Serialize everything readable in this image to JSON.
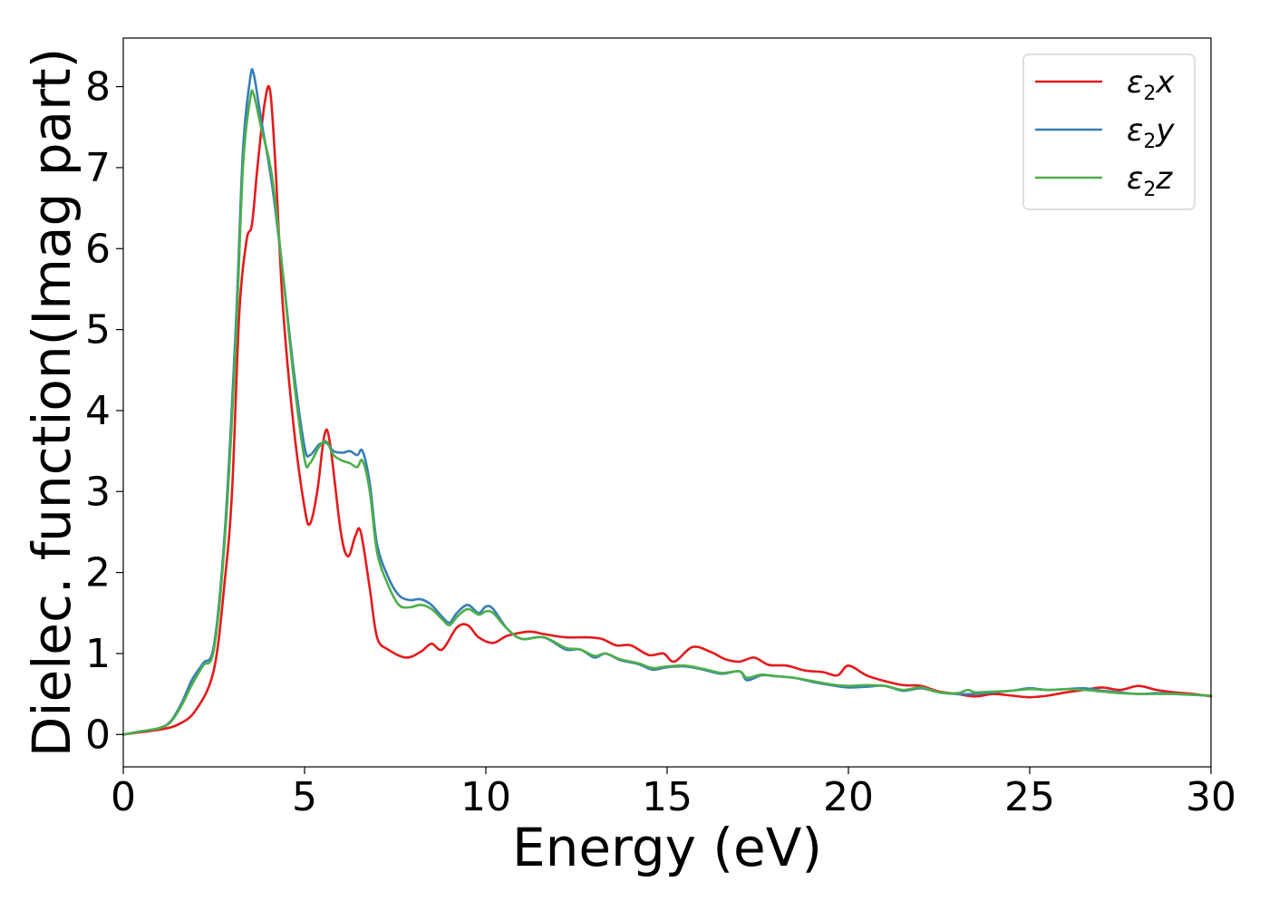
{
  "chart_data": {
    "type": "line",
    "title": "",
    "xlabel": "Energy (eV)",
    "ylabel": "Dielec. function(Imag part)",
    "xlim": [
      0,
      30
    ],
    "ylim": [
      -0.4,
      8.6
    ],
    "xticks": [
      "0",
      "5",
      "10",
      "15",
      "20",
      "25",
      "30"
    ],
    "yticks": [
      "0",
      "1",
      "2",
      "3",
      "4",
      "5",
      "6",
      "7",
      "8"
    ],
    "grid": false,
    "legend_position": "top-right",
    "series": [
      {
        "name": "ε2x",
        "legend_base": "ε",
        "legend_sub": "2",
        "legend_suffix": "x",
        "color": "#e41a1c",
        "points": [
          [
            0,
            0
          ],
          [
            0.5,
            0.03
          ],
          [
            1.0,
            0.06
          ],
          [
            1.5,
            0.12
          ],
          [
            2.0,
            0.3
          ],
          [
            2.5,
            0.8
          ],
          [
            2.8,
            1.9
          ],
          [
            3.0,
            3.0
          ],
          [
            3.2,
            5.2
          ],
          [
            3.4,
            6.1
          ],
          [
            3.55,
            6.3
          ],
          [
            3.7,
            7.0
          ],
          [
            3.9,
            7.8
          ],
          [
            4.05,
            7.95
          ],
          [
            4.2,
            7.0
          ],
          [
            4.4,
            5.3
          ],
          [
            4.7,
            3.8
          ],
          [
            5.0,
            2.8
          ],
          [
            5.15,
            2.6
          ],
          [
            5.35,
            3.0
          ],
          [
            5.55,
            3.7
          ],
          [
            5.7,
            3.6
          ],
          [
            6.0,
            2.5
          ],
          [
            6.2,
            2.2
          ],
          [
            6.4,
            2.45
          ],
          [
            6.55,
            2.5
          ],
          [
            6.8,
            1.8
          ],
          [
            7.0,
            1.2
          ],
          [
            7.3,
            1.05
          ],
          [
            7.8,
            0.95
          ],
          [
            8.2,
            1.02
          ],
          [
            8.5,
            1.12
          ],
          [
            8.8,
            1.05
          ],
          [
            9.2,
            1.32
          ],
          [
            9.5,
            1.35
          ],
          [
            9.8,
            1.2
          ],
          [
            10.2,
            1.13
          ],
          [
            10.6,
            1.22
          ],
          [
            11.2,
            1.27
          ],
          [
            11.6,
            1.24
          ],
          [
            12.2,
            1.2
          ],
          [
            12.8,
            1.2
          ],
          [
            13.2,
            1.18
          ],
          [
            13.6,
            1.1
          ],
          [
            14.0,
            1.1
          ],
          [
            14.5,
            0.98
          ],
          [
            14.9,
            1.0
          ],
          [
            15.2,
            0.9
          ],
          [
            15.7,
            1.08
          ],
          [
            16.2,
            1.02
          ],
          [
            16.6,
            0.93
          ],
          [
            17.0,
            0.9
          ],
          [
            17.4,
            0.95
          ],
          [
            17.8,
            0.86
          ],
          [
            18.3,
            0.85
          ],
          [
            18.8,
            0.79
          ],
          [
            19.3,
            0.77
          ],
          [
            19.7,
            0.73
          ],
          [
            20.0,
            0.85
          ],
          [
            20.5,
            0.73
          ],
          [
            21.0,
            0.66
          ],
          [
            21.5,
            0.61
          ],
          [
            22.0,
            0.6
          ],
          [
            22.5,
            0.53
          ],
          [
            23.0,
            0.5
          ],
          [
            23.5,
            0.47
          ],
          [
            24.0,
            0.5
          ],
          [
            24.5,
            0.48
          ],
          [
            25.0,
            0.46
          ],
          [
            25.5,
            0.48
          ],
          [
            26.0,
            0.52
          ],
          [
            26.5,
            0.55
          ],
          [
            27.0,
            0.58
          ],
          [
            27.5,
            0.55
          ],
          [
            28.0,
            0.6
          ],
          [
            28.5,
            0.55
          ],
          [
            29.0,
            0.52
          ],
          [
            29.5,
            0.5
          ],
          [
            30.0,
            0.47
          ]
        ]
      },
      {
        "name": "ε2y",
        "legend_base": "ε",
        "legend_sub": "2",
        "legend_suffix": "y",
        "color": "#377eb8",
        "points": [
          [
            0,
            0
          ],
          [
            0.5,
            0.04
          ],
          [
            1.0,
            0.08
          ],
          [
            1.3,
            0.16
          ],
          [
            1.6,
            0.38
          ],
          [
            1.9,
            0.68
          ],
          [
            2.2,
            0.88
          ],
          [
            2.5,
            1.1
          ],
          [
            2.8,
            2.5
          ],
          [
            3.1,
            5.0
          ],
          [
            3.3,
            7.2
          ],
          [
            3.5,
            8.1
          ],
          [
            3.6,
            8.15
          ],
          [
            3.8,
            7.6
          ],
          [
            4.1,
            6.8
          ],
          [
            4.4,
            5.7
          ],
          [
            4.7,
            4.5
          ],
          [
            5.0,
            3.55
          ],
          [
            5.15,
            3.45
          ],
          [
            5.4,
            3.58
          ],
          [
            5.6,
            3.6
          ],
          [
            5.8,
            3.5
          ],
          [
            6.05,
            3.48
          ],
          [
            6.25,
            3.5
          ],
          [
            6.45,
            3.45
          ],
          [
            6.6,
            3.5
          ],
          [
            6.8,
            3.1
          ],
          [
            7.0,
            2.35
          ],
          [
            7.3,
            1.95
          ],
          [
            7.6,
            1.72
          ],
          [
            7.9,
            1.66
          ],
          [
            8.2,
            1.67
          ],
          [
            8.5,
            1.6
          ],
          [
            8.8,
            1.45
          ],
          [
            9.0,
            1.38
          ],
          [
            9.2,
            1.5
          ],
          [
            9.5,
            1.6
          ],
          [
            9.8,
            1.5
          ],
          [
            10.0,
            1.58
          ],
          [
            10.2,
            1.55
          ],
          [
            10.6,
            1.3
          ],
          [
            11.0,
            1.18
          ],
          [
            11.6,
            1.2
          ],
          [
            12.2,
            1.05
          ],
          [
            12.6,
            1.05
          ],
          [
            13.0,
            0.95
          ],
          [
            13.3,
            1.0
          ],
          [
            13.7,
            0.92
          ],
          [
            14.2,
            0.87
          ],
          [
            14.6,
            0.8
          ],
          [
            15.0,
            0.83
          ],
          [
            15.5,
            0.84
          ],
          [
            16.0,
            0.8
          ],
          [
            16.5,
            0.75
          ],
          [
            17.0,
            0.78
          ],
          [
            17.2,
            0.67
          ],
          [
            17.6,
            0.73
          ],
          [
            18.0,
            0.72
          ],
          [
            18.5,
            0.7
          ],
          [
            19.0,
            0.65
          ],
          [
            19.5,
            0.61
          ],
          [
            20.0,
            0.58
          ],
          [
            20.5,
            0.59
          ],
          [
            21.0,
            0.6
          ],
          [
            21.5,
            0.54
          ],
          [
            22.0,
            0.57
          ],
          [
            22.5,
            0.52
          ],
          [
            23.0,
            0.5
          ],
          [
            23.5,
            0.5
          ],
          [
            24.0,
            0.52
          ],
          [
            24.5,
            0.54
          ],
          [
            25.0,
            0.57
          ],
          [
            25.5,
            0.55
          ],
          [
            26.0,
            0.56
          ],
          [
            26.5,
            0.57
          ],
          [
            27.0,
            0.54
          ],
          [
            27.5,
            0.52
          ],
          [
            28.0,
            0.5
          ],
          [
            28.5,
            0.51
          ],
          [
            29.0,
            0.5
          ],
          [
            29.5,
            0.49
          ],
          [
            30.0,
            0.48
          ]
        ]
      },
      {
        "name": "ε2z",
        "legend_base": "ε",
        "legend_sub": "2",
        "legend_suffix": "z",
        "color": "#4daf4a",
        "points": [
          [
            0,
            0
          ],
          [
            0.5,
            0.04
          ],
          [
            1.0,
            0.08
          ],
          [
            1.3,
            0.15
          ],
          [
            1.6,
            0.35
          ],
          [
            1.9,
            0.62
          ],
          [
            2.2,
            0.85
          ],
          [
            2.5,
            1.05
          ],
          [
            2.8,
            2.4
          ],
          [
            3.1,
            4.8
          ],
          [
            3.3,
            7.0
          ],
          [
            3.5,
            7.85
          ],
          [
            3.6,
            7.9
          ],
          [
            3.8,
            7.5
          ],
          [
            4.1,
            6.9
          ],
          [
            4.4,
            5.7
          ],
          [
            4.7,
            4.4
          ],
          [
            5.0,
            3.4
          ],
          [
            5.15,
            3.35
          ],
          [
            5.4,
            3.55
          ],
          [
            5.6,
            3.62
          ],
          [
            5.8,
            3.45
          ],
          [
            6.05,
            3.38
          ],
          [
            6.25,
            3.35
          ],
          [
            6.45,
            3.3
          ],
          [
            6.6,
            3.38
          ],
          [
            6.8,
            3.0
          ],
          [
            7.0,
            2.25
          ],
          [
            7.3,
            1.85
          ],
          [
            7.6,
            1.6
          ],
          [
            7.9,
            1.57
          ],
          [
            8.2,
            1.6
          ],
          [
            8.5,
            1.55
          ],
          [
            8.8,
            1.42
          ],
          [
            9.0,
            1.35
          ],
          [
            9.2,
            1.45
          ],
          [
            9.5,
            1.55
          ],
          [
            9.8,
            1.48
          ],
          [
            10.0,
            1.52
          ],
          [
            10.2,
            1.5
          ],
          [
            10.6,
            1.3
          ],
          [
            11.0,
            1.18
          ],
          [
            11.6,
            1.2
          ],
          [
            12.2,
            1.07
          ],
          [
            12.6,
            1.05
          ],
          [
            13.0,
            0.97
          ],
          [
            13.3,
            1.0
          ],
          [
            13.7,
            0.93
          ],
          [
            14.2,
            0.88
          ],
          [
            14.6,
            0.82
          ],
          [
            15.0,
            0.84
          ],
          [
            15.5,
            0.85
          ],
          [
            16.0,
            0.81
          ],
          [
            16.5,
            0.76
          ],
          [
            17.0,
            0.78
          ],
          [
            17.2,
            0.7
          ],
          [
            17.6,
            0.74
          ],
          [
            18.0,
            0.72
          ],
          [
            18.5,
            0.7
          ],
          [
            19.0,
            0.66
          ],
          [
            19.5,
            0.62
          ],
          [
            20.0,
            0.6
          ],
          [
            20.5,
            0.61
          ],
          [
            21.0,
            0.6
          ],
          [
            21.5,
            0.55
          ],
          [
            22.0,
            0.58
          ],
          [
            22.5,
            0.52
          ],
          [
            23.0,
            0.51
          ],
          [
            23.3,
            0.55
          ],
          [
            23.5,
            0.52
          ],
          [
            24.0,
            0.53
          ],
          [
            24.5,
            0.54
          ],
          [
            25.0,
            0.56
          ],
          [
            25.5,
            0.55
          ],
          [
            26.0,
            0.56
          ],
          [
            26.5,
            0.55
          ],
          [
            27.0,
            0.53
          ],
          [
            27.5,
            0.51
          ],
          [
            28.0,
            0.5
          ],
          [
            28.5,
            0.5
          ],
          [
            29.0,
            0.5
          ],
          [
            29.5,
            0.49
          ],
          [
            30.0,
            0.48
          ]
        ]
      }
    ]
  }
}
